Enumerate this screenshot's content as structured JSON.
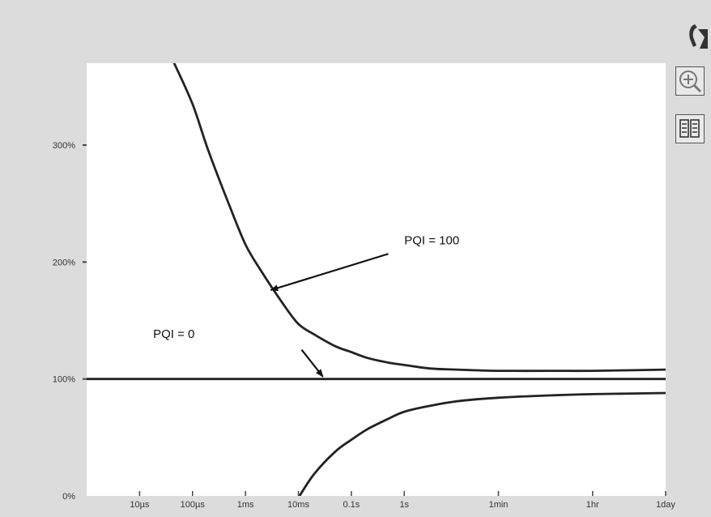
{
  "toolbar": {
    "logo_icon": "app-logo-icon",
    "zoom_icon": "zoom-in-icon",
    "columns_icon": "columns-icon"
  },
  "chart_data": {
    "type": "line",
    "title": "",
    "xlabel": "",
    "ylabel": "",
    "x_scale": "log",
    "x_unit": "seconds",
    "x_ticks": [
      {
        "label": "10µs",
        "value": 1e-05
      },
      {
        "label": "100µs",
        "value": 0.0001
      },
      {
        "label": "1ms",
        "value": 0.001
      },
      {
        "label": "10ms",
        "value": 0.01
      },
      {
        "label": "0.1s",
        "value": 0.1
      },
      {
        "label": "1s",
        "value": 1
      },
      {
        "label": "1min",
        "value": 60
      },
      {
        "label": "1hr",
        "value": 3600
      },
      {
        "label": "1day",
        "value": 86400
      }
    ],
    "xlim": [
      1e-06,
      86400
    ],
    "y_ticks": [
      {
        "label": "0%",
        "value": 0
      },
      {
        "label": "100%",
        "value": 100
      },
      {
        "label": "200%",
        "value": 200
      },
      {
        "label": "300%",
        "value": 300
      }
    ],
    "ylim": [
      0,
      370
    ],
    "grid": false,
    "series": [
      {
        "name": "PQI = 100 (upper)",
        "color": "#222222",
        "x": [
          4.2e-05,
          0.0001,
          0.0002,
          0.0005,
          0.001,
          0.002,
          0.005,
          0.01,
          0.02,
          0.05,
          0.1,
          0.2,
          0.5,
          1,
          3,
          10,
          60,
          600,
          3600,
          86400
        ],
        "y": [
          373,
          335,
          295,
          248,
          215,
          192,
          165,
          147,
          138,
          128,
          123,
          118,
          114,
          112,
          109,
          108,
          107,
          107,
          107,
          108
        ]
      },
      {
        "name": "PQI = 0",
        "color": "#222222",
        "x": [
          1e-06,
          86400
        ],
        "y": [
          100,
          100
        ]
      },
      {
        "name": "PQI = 100 (lower)",
        "color": "#222222",
        "x": [
          0.0105,
          0.02,
          0.05,
          0.1,
          0.2,
          0.5,
          1,
          3,
          10,
          60,
          600,
          3600,
          86400
        ],
        "y": [
          0,
          19,
          38,
          48,
          57,
          66,
          72,
          77,
          81,
          84,
          86,
          87,
          88
        ]
      }
    ],
    "annotations": [
      {
        "text": "PQI = 100",
        "label_x": 1.0,
        "label_y": 215,
        "arrow_from_x": 0.5,
        "arrow_from_y": 207,
        "arrow_to_x": 0.003,
        "arrow_to_y": 176
      },
      {
        "text": "PQI = 0",
        "label_x": 1.8e-05,
        "label_y": 135,
        "arrow_from_x": 0.0115,
        "arrow_from_y": 125,
        "arrow_to_x": 0.029,
        "arrow_to_y": 102
      }
    ]
  }
}
